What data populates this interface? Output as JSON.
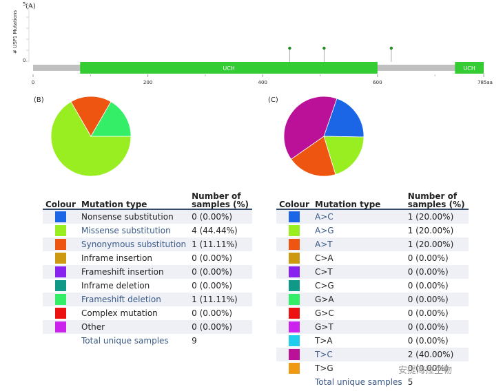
{
  "panel_a": {
    "label": "(A)",
    "ylabel": "# USP1 Mutations",
    "y_ticks": [
      "5",
      "0"
    ],
    "x_ticks": [
      "0",
      "200",
      "400",
      "600",
      "785aa"
    ],
    "protein_length": 785,
    "domains": [
      {
        "name": "UCH",
        "start": 82,
        "end": 600
      },
      {
        "name": "UCH",
        "start": 735,
        "end": 785
      }
    ],
    "mutation_positions": [
      447,
      507,
      624
    ],
    "domain_color": "#33cc33",
    "backbone_color": "#c0c0c0"
  },
  "panel_b": {
    "label": "(B)",
    "headers": {
      "colour": "Colour",
      "type": "Mutation type",
      "number": "Number of samples (%)"
    },
    "rows": [
      {
        "color": "#1a66e6",
        "name": "Nonsense substitution",
        "value": "0 (0.00%)",
        "link": false
      },
      {
        "color": "#99ee22",
        "name": "Missense substitution",
        "value": "4 (44.44%)",
        "link": true
      },
      {
        "color": "#ee5511",
        "name": "Synonymous substitution",
        "value": "1 (11.11%)",
        "link": true
      },
      {
        "color": "#cc9911",
        "name": "Inframe insertion",
        "value": "0 (0.00%)",
        "link": false
      },
      {
        "color": "#8822ee",
        "name": "Frameshift insertion",
        "value": "0 (0.00%)",
        "link": false
      },
      {
        "color": "#119988",
        "name": "Inframe deletion",
        "value": "0 (0.00%)",
        "link": false
      },
      {
        "color": "#33ee66",
        "name": "Frameshift deletion",
        "value": "1 (11.11%)",
        "link": true
      },
      {
        "color": "#ee1111",
        "name": "Complex mutation",
        "value": "0 (0.00%)",
        "link": false
      },
      {
        "color": "#cc22ee",
        "name": "Other",
        "value": "0 (0.00%)",
        "link": false
      }
    ],
    "total_label": "Total unique samples",
    "total_value": "9"
  },
  "panel_c": {
    "label": "(C)",
    "headers": {
      "colour": "Colour",
      "type": "Mutation type",
      "number": "Number of samples (%)"
    },
    "rows": [
      {
        "color": "#1a66e6",
        "name": "A>C",
        "value": "1 (20.00%)",
        "link": true
      },
      {
        "color": "#99ee22",
        "name": "A>G",
        "value": "1 (20.00%)",
        "link": true
      },
      {
        "color": "#ee5511",
        "name": "A>T",
        "value": "1 (20.00%)",
        "link": true
      },
      {
        "color": "#cc9911",
        "name": "C>A",
        "value": "0 (0.00%)",
        "link": false
      },
      {
        "color": "#8822ee",
        "name": "C>T",
        "value": "0 (0.00%)",
        "link": false
      },
      {
        "color": "#119988",
        "name": "C>G",
        "value": "0 (0.00%)",
        "link": false
      },
      {
        "color": "#33ee66",
        "name": "G>A",
        "value": "0 (0.00%)",
        "link": false
      },
      {
        "color": "#ee1111",
        "name": "G>C",
        "value": "0 (0.00%)",
        "link": false
      },
      {
        "color": "#cc22ee",
        "name": "G>T",
        "value": "0 (0.00%)",
        "link": false
      },
      {
        "color": "#22ccee",
        "name": "T>A",
        "value": "0 (0.00%)",
        "link": false
      },
      {
        "color": "#bb1199",
        "name": "T>C",
        "value": "2 (40.00%)",
        "link": true
      },
      {
        "color": "#ee9911",
        "name": "T>G",
        "value": "0 (0.00%)",
        "link": false
      }
    ],
    "total_label": "Total unique samples",
    "total_value": "5"
  },
  "watermark": "安提海拉生物",
  "chart_data": [
    {
      "type": "scatter",
      "title": "",
      "xlabel": "",
      "ylabel": "# USP1 Mutations",
      "xlim": [
        0,
        785
      ],
      "ylim": [
        0,
        5
      ],
      "x": [
        447,
        507,
        624
      ],
      "y": [
        1,
        1,
        1
      ]
    },
    {
      "type": "pie",
      "title": "",
      "labels": [
        "Missense substitution",
        "Synonymous substitution",
        "Frameshift deletion"
      ],
      "values": [
        4,
        1,
        1
      ],
      "colors": [
        "#99ee22",
        "#ee5511",
        "#33ee66"
      ]
    },
    {
      "type": "pie",
      "title": "",
      "labels": [
        "A>C",
        "A>G",
        "A>T",
        "T>C"
      ],
      "values": [
        1,
        1,
        1,
        2
      ],
      "colors": [
        "#1a66e6",
        "#99ee22",
        "#ee5511",
        "#bb1199"
      ]
    }
  ]
}
